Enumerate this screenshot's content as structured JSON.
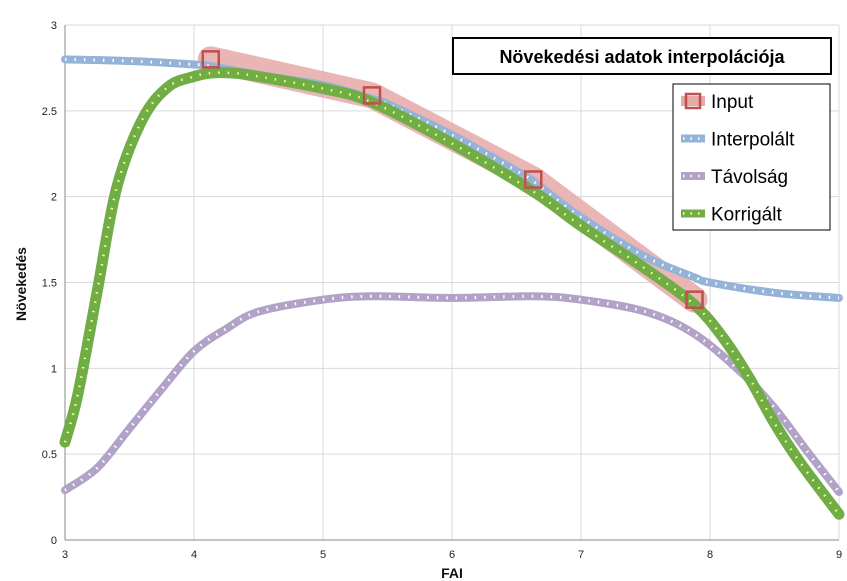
{
  "chart_data": {
    "type": "line",
    "title": "Növekedési adatok interpolációja",
    "xlabel": "FAI",
    "ylabel": "Növekedés",
    "xlim": [
      3,
      9
    ],
    "ylim": [
      0,
      3
    ],
    "x_ticks": [
      "3",
      "4",
      "5",
      "6",
      "7",
      "8",
      "9"
    ],
    "y_ticks": [
      "0",
      "0.5",
      "1",
      "1.5",
      "2",
      "2.5",
      "3"
    ],
    "grid": true,
    "legend_position": "top-right",
    "series": [
      {
        "name": "Input",
        "style": "markers-with-band",
        "color": "#c0504d",
        "band_color": "#e6a9a8",
        "x": [
          4.13,
          5.38,
          6.63,
          7.88
        ],
        "y": [
          2.8,
          2.59,
          2.1,
          1.4
        ]
      },
      {
        "name": "Interpolált",
        "style": "thick-line-dots",
        "color": "#95b3d7",
        "x": [
          3.0,
          3.5,
          4.0,
          4.13,
          4.5,
          5.0,
          5.38,
          5.5,
          6.0,
          6.5,
          6.63,
          7.0,
          7.5,
          7.88,
          8.0,
          8.5,
          9.0
        ],
        "y": [
          2.8,
          2.79,
          2.77,
          2.76,
          2.71,
          2.65,
          2.57,
          2.54,
          2.36,
          2.15,
          2.09,
          1.88,
          1.65,
          1.53,
          1.5,
          1.44,
          1.41
        ]
      },
      {
        "name": "Távolság",
        "style": "thick-line-dots",
        "color": "#b3a2c7",
        "x": [
          3.0,
          3.25,
          3.5,
          3.75,
          4.0,
          4.25,
          4.5,
          5.0,
          5.38,
          6.0,
          6.63,
          7.0,
          7.5,
          7.88,
          8.25,
          8.5,
          8.75,
          9.0
        ],
        "y": [
          0.29,
          0.42,
          0.65,
          0.88,
          1.1,
          1.23,
          1.33,
          1.4,
          1.42,
          1.41,
          1.42,
          1.4,
          1.33,
          1.2,
          0.97,
          0.77,
          0.52,
          0.28
        ]
      },
      {
        "name": "Korrigált",
        "style": "thick-line-dots",
        "color": "#70ad47",
        "x": [
          3.0,
          3.1,
          3.25,
          3.4,
          3.6,
          3.8,
          4.0,
          4.13,
          4.3,
          4.5,
          5.0,
          5.38,
          6.0,
          6.63,
          7.0,
          7.5,
          7.88,
          8.1,
          8.3,
          8.5,
          8.7,
          9.0
        ],
        "y": [
          0.57,
          0.85,
          1.45,
          2.05,
          2.45,
          2.64,
          2.7,
          2.72,
          2.72,
          2.7,
          2.63,
          2.55,
          2.31,
          2.03,
          1.83,
          1.58,
          1.37,
          1.18,
          0.95,
          0.68,
          0.45,
          0.15
        ]
      }
    ]
  }
}
